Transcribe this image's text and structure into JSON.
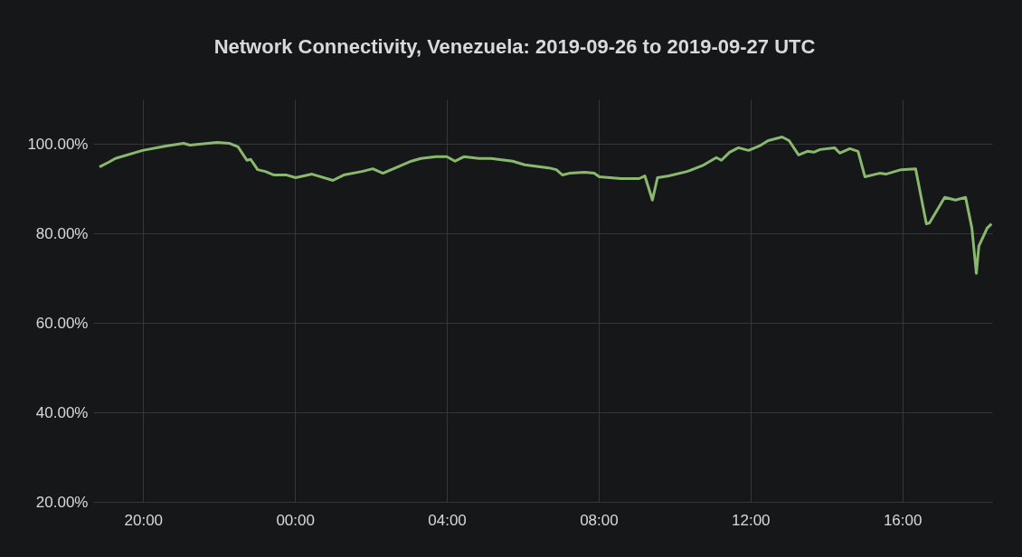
{
  "chart_data": {
    "type": "line",
    "title": "Network Connectivity, Venezuela: 2019-09-26 to 2019-09-27 UTC",
    "x": [
      "2019-09-26T18:51",
      "2019-09-26T19:06",
      "2019-09-26T19:16",
      "2019-09-26T19:59",
      "2019-09-26T20:36",
      "2019-09-26T21:04",
      "2019-09-26T21:14",
      "2019-09-26T21:57",
      "2019-09-26T22:16",
      "2019-09-26T22:30",
      "2019-09-26T22:44",
      "2019-09-26T22:50",
      "2019-09-26T23:01",
      "2019-09-26T23:13",
      "2019-09-26T23:27",
      "2019-09-26T23:47",
      "2019-09-27T00:01",
      "2019-09-27T00:27",
      "2019-09-27T01:00",
      "2019-09-27T01:17",
      "2019-09-27T01:46",
      "2019-09-27T02:03",
      "2019-09-27T02:19",
      "2019-09-27T02:39",
      "2019-09-27T03:04",
      "2019-09-27T03:19",
      "2019-09-27T03:43",
      "2019-09-27T04:00",
      "2019-09-27T04:13",
      "2019-09-27T04:27",
      "2019-09-27T04:51",
      "2019-09-27T05:10",
      "2019-09-27T05:44",
      "2019-09-27T06:03",
      "2019-09-27T06:41",
      "2019-09-27T06:53",
      "2019-09-27T07:03",
      "2019-09-27T07:14",
      "2019-09-27T07:38",
      "2019-09-27T07:53",
      "2019-09-27T08:01",
      "2019-09-27T08:35",
      "2019-09-27T09:04",
      "2019-09-27T09:13",
      "2019-09-27T09:25",
      "2019-09-27T09:33",
      "2019-09-27T09:51",
      "2019-09-27T10:20",
      "2019-09-27T10:44",
      "2019-09-27T11:06",
      "2019-09-27T11:14",
      "2019-09-27T11:27",
      "2019-09-27T11:41",
      "2019-09-27T11:57",
      "2019-09-27T12:14",
      "2019-09-27T12:28",
      "2019-09-27T12:50",
      "2019-09-27T13:01",
      "2019-09-27T13:16",
      "2019-09-27T13:30",
      "2019-09-27T13:40",
      "2019-09-27T13:50",
      "2019-09-27T14:13",
      "2019-09-27T14:21",
      "2019-09-27T14:37",
      "2019-09-27T14:50",
      "2019-09-27T15:01",
      "2019-09-27T15:24",
      "2019-09-27T15:34",
      "2019-09-27T15:58",
      "2019-09-27T16:21",
      "2019-09-27T16:38",
      "2019-09-27T16:43",
      "2019-09-27T17:07",
      "2019-09-27T17:24",
      "2019-09-27T17:40",
      "2019-09-27T17:50",
      "2019-09-27T17:57",
      "2019-09-27T18:01",
      "2019-09-27T18:14",
      "2019-09-27T18:21"
    ],
    "series": [
      {
        "color": "#8ab86f",
        "values": [
          94.9,
          96.0,
          96.8,
          98.6,
          99.6,
          100.2,
          99.8,
          100.4,
          100.2,
          99.4,
          96.4,
          96.6,
          94.3,
          93.9,
          93.1,
          93.1,
          92.5,
          93.3,
          91.9,
          93.1,
          93.9,
          94.5,
          93.5,
          94.7,
          96.2,
          96.8,
          97.2,
          97.2,
          96.2,
          97.2,
          96.8,
          96.8,
          96.2,
          95.4,
          94.7,
          94.3,
          93.1,
          93.5,
          93.7,
          93.5,
          92.7,
          92.3,
          92.3,
          92.9,
          87.5,
          92.5,
          92.9,
          93.9,
          95.2,
          97.0,
          96.4,
          98.2,
          99.2,
          98.6,
          99.6,
          100.8,
          101.6,
          100.8,
          97.6,
          98.4,
          98.2,
          98.8,
          99.2,
          98.0,
          99.0,
          98.4,
          92.7,
          93.5,
          93.3,
          94.3,
          94.5,
          82.2,
          82.4,
          88.1,
          87.5,
          88.1,
          81.2,
          71.1,
          77.2,
          81.2,
          82.2
        ]
      }
    ],
    "xlim": [
      "2019-09-26T18:41",
      "2019-09-27T18:22"
    ],
    "xticks": [
      {
        "value": "2019-09-26T20:00",
        "label": "20:00"
      },
      {
        "value": "2019-09-27T00:00",
        "label": "00:00"
      },
      {
        "value": "2019-09-27T04:00",
        "label": "04:00"
      },
      {
        "value": "2019-09-27T08:00",
        "label": "08:00"
      },
      {
        "value": "2019-09-27T12:00",
        "label": "12:00"
      },
      {
        "value": "2019-09-27T16:00",
        "label": "16:00"
      }
    ],
    "ylim": [
      20,
      110
    ],
    "yticks": [
      {
        "value": 20,
        "label": "20.00%"
      },
      {
        "value": 40,
        "label": "40.00%"
      },
      {
        "value": 60,
        "label": "60.00%"
      },
      {
        "value": 80,
        "label": "80.00%"
      },
      {
        "value": 100,
        "label": "100.00%"
      }
    ],
    "grid": true
  }
}
